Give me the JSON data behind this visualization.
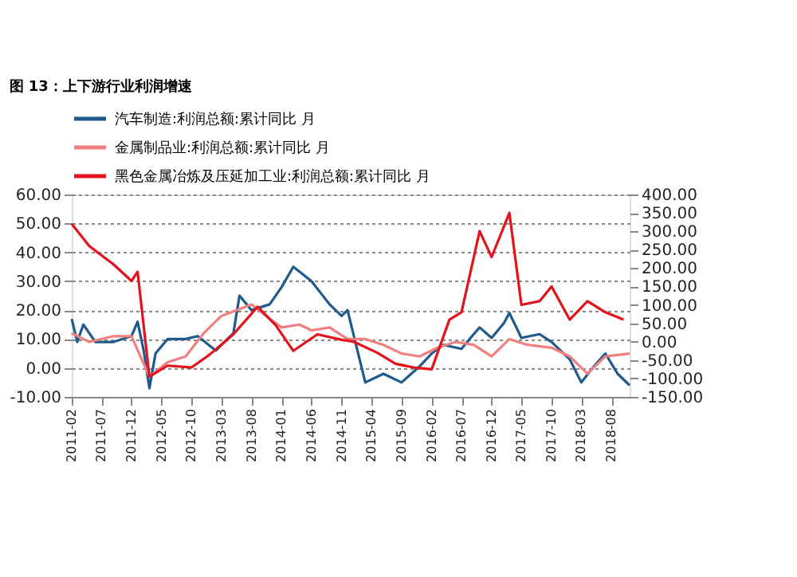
{
  "chart_data": {
    "type": "line",
    "title": "图 13：上下游行业利润增速",
    "legend": "top",
    "grid": "y",
    "line_style": "solid",
    "marker": "none",
    "xlim": [
      "2011-02",
      "2018-11"
    ],
    "xticks": [
      "2011-02",
      "2011-07",
      "2011-12",
      "2012-05",
      "2012-10",
      "2013-03",
      "2013-08",
      "2014-01",
      "2014-06",
      "2014-11",
      "2015-04",
      "2015-09",
      "2016-02",
      "2016-07",
      "2016-12",
      "2017-05",
      "2017-10",
      "2018-03",
      "2018-08"
    ],
    "ylim": [
      -10,
      60
    ],
    "yticks": [
      {
        "value": -10,
        "label": "-10.00"
      },
      {
        "value": 0,
        "label": "0.00"
      },
      {
        "value": 10,
        "label": "10.00"
      },
      {
        "value": 20,
        "label": "20.00"
      },
      {
        "value": 30,
        "label": "30.00"
      },
      {
        "value": 40,
        "label": "40.00"
      },
      {
        "value": 50,
        "label": "50.00"
      },
      {
        "value": 60,
        "label": "60.00"
      }
    ],
    "y2lim": [
      -150,
      400
    ],
    "y2ticks": [
      {
        "value": -150,
        "label": "-150.00"
      },
      {
        "value": -100,
        "label": "-100.00"
      },
      {
        "value": -50,
        "label": "-50.00"
      },
      {
        "value": 0,
        "label": "0.00"
      },
      {
        "value": 50,
        "label": "50.00"
      },
      {
        "value": 100,
        "label": "100.00"
      },
      {
        "value": 150,
        "label": "150.00"
      },
      {
        "value": 200,
        "label": "200.00"
      },
      {
        "value": 250,
        "label": "250.00"
      },
      {
        "value": 300,
        "label": "300.00"
      },
      {
        "value": 350,
        "label": "350.00"
      },
      {
        "value": 400,
        "label": "400.00"
      }
    ],
    "series": [
      {
        "name": "汽车制造:利润总额:累计同比 月",
        "color": "#1f5a8c",
        "x": [
          "2011-02",
          "2011-03",
          "2011-04",
          "2011-06",
          "2011-09",
          "2011-12",
          "2012-01",
          "2012-02",
          "2012-03",
          "2012-04",
          "2012-06",
          "2012-09",
          "2012-11",
          "2013-02",
          "2013-05",
          "2013-06",
          "2013-08",
          "2013-11",
          "2014-01",
          "2014-03",
          "2014-06",
          "2014-09",
          "2014-11",
          "2014-12",
          "2015-03",
          "2015-06",
          "2015-09",
          "2015-12",
          "2016-02",
          "2016-04",
          "2016-07",
          "2016-09",
          "2016-10",
          "2016-12",
          "2017-02",
          "2017-03",
          "2017-05",
          "2017-08",
          "2017-10",
          "2018-01",
          "2018-03",
          "2018-05",
          "2018-07",
          "2018-09",
          "2018-11"
        ],
        "values": [
          17,
          9,
          15,
          9,
          9,
          11,
          16,
          6,
          -7,
          5,
          10,
          10,
          11,
          6,
          12,
          25,
          20,
          22,
          28,
          35,
          30,
          22,
          18,
          20,
          -5,
          -2,
          -5,
          0.5,
          5,
          8,
          6.6,
          11.7,
          14,
          10.4,
          15.5,
          19,
          10.4,
          11.7,
          9,
          3,
          -5,
          0.3,
          5,
          -2,
          -6
        ]
      },
      {
        "name": "金属制品业:利润总额:累计同比 月",
        "color": "#f08080",
        "x": [
          "2011-02",
          "2011-05",
          "2011-09",
          "2011-12",
          "2012-03",
          "2012-06",
          "2012-09",
          "2012-12",
          "2013-03",
          "2013-08",
          "2013-11",
          "2014-01",
          "2014-04",
          "2014-06",
          "2014-09",
          "2014-12",
          "2015-03",
          "2015-06",
          "2015-09",
          "2015-12",
          "2016-03",
          "2016-06",
          "2016-09",
          "2016-12",
          "2017-03",
          "2017-06",
          "2017-10",
          "2018-01",
          "2018-04",
          "2018-07",
          "2018-11"
        ],
        "values": [
          12,
          9,
          11,
          11,
          -3,
          2,
          4,
          12,
          18,
          22,
          17,
          14,
          15,
          13,
          14,
          10,
          10,
          8,
          5,
          4,
          7,
          9,
          8,
          4,
          10,
          8,
          7,
          4,
          -2,
          4,
          5
        ]
      },
      {
        "name": "黑色金属冶炼及压延加工业:利润总额:累计同比 月",
        "color": "#e3121b",
        "axis": "y2",
        "x": [
          "2011-02",
          "2011-05",
          "2011-09",
          "2011-12",
          "2012-01",
          "2012-03",
          "2012-06",
          "2012-10",
          "2013-01",
          "2013-05",
          "2013-09",
          "2013-12",
          "2014-03",
          "2014-07",
          "2014-11",
          "2015-01",
          "2015-05",
          "2015-08",
          "2015-11",
          "2016-02",
          "2016-05",
          "2016-07",
          "2016-10",
          "2016-12",
          "2017-03",
          "2017-05",
          "2017-08",
          "2017-10",
          "2018-01",
          "2018-04",
          "2018-07",
          "2018-10"
        ],
        "values": [
          320,
          260,
          210,
          165,
          190,
          -95,
          -65,
          -70,
          -35,
          20,
          95,
          45,
          -25,
          20,
          5,
          0,
          -30,
          -60,
          -70,
          -75,
          60,
          80,
          300,
          230,
          350,
          100,
          110,
          150,
          60,
          110,
          80,
          60
        ]
      }
    ]
  }
}
